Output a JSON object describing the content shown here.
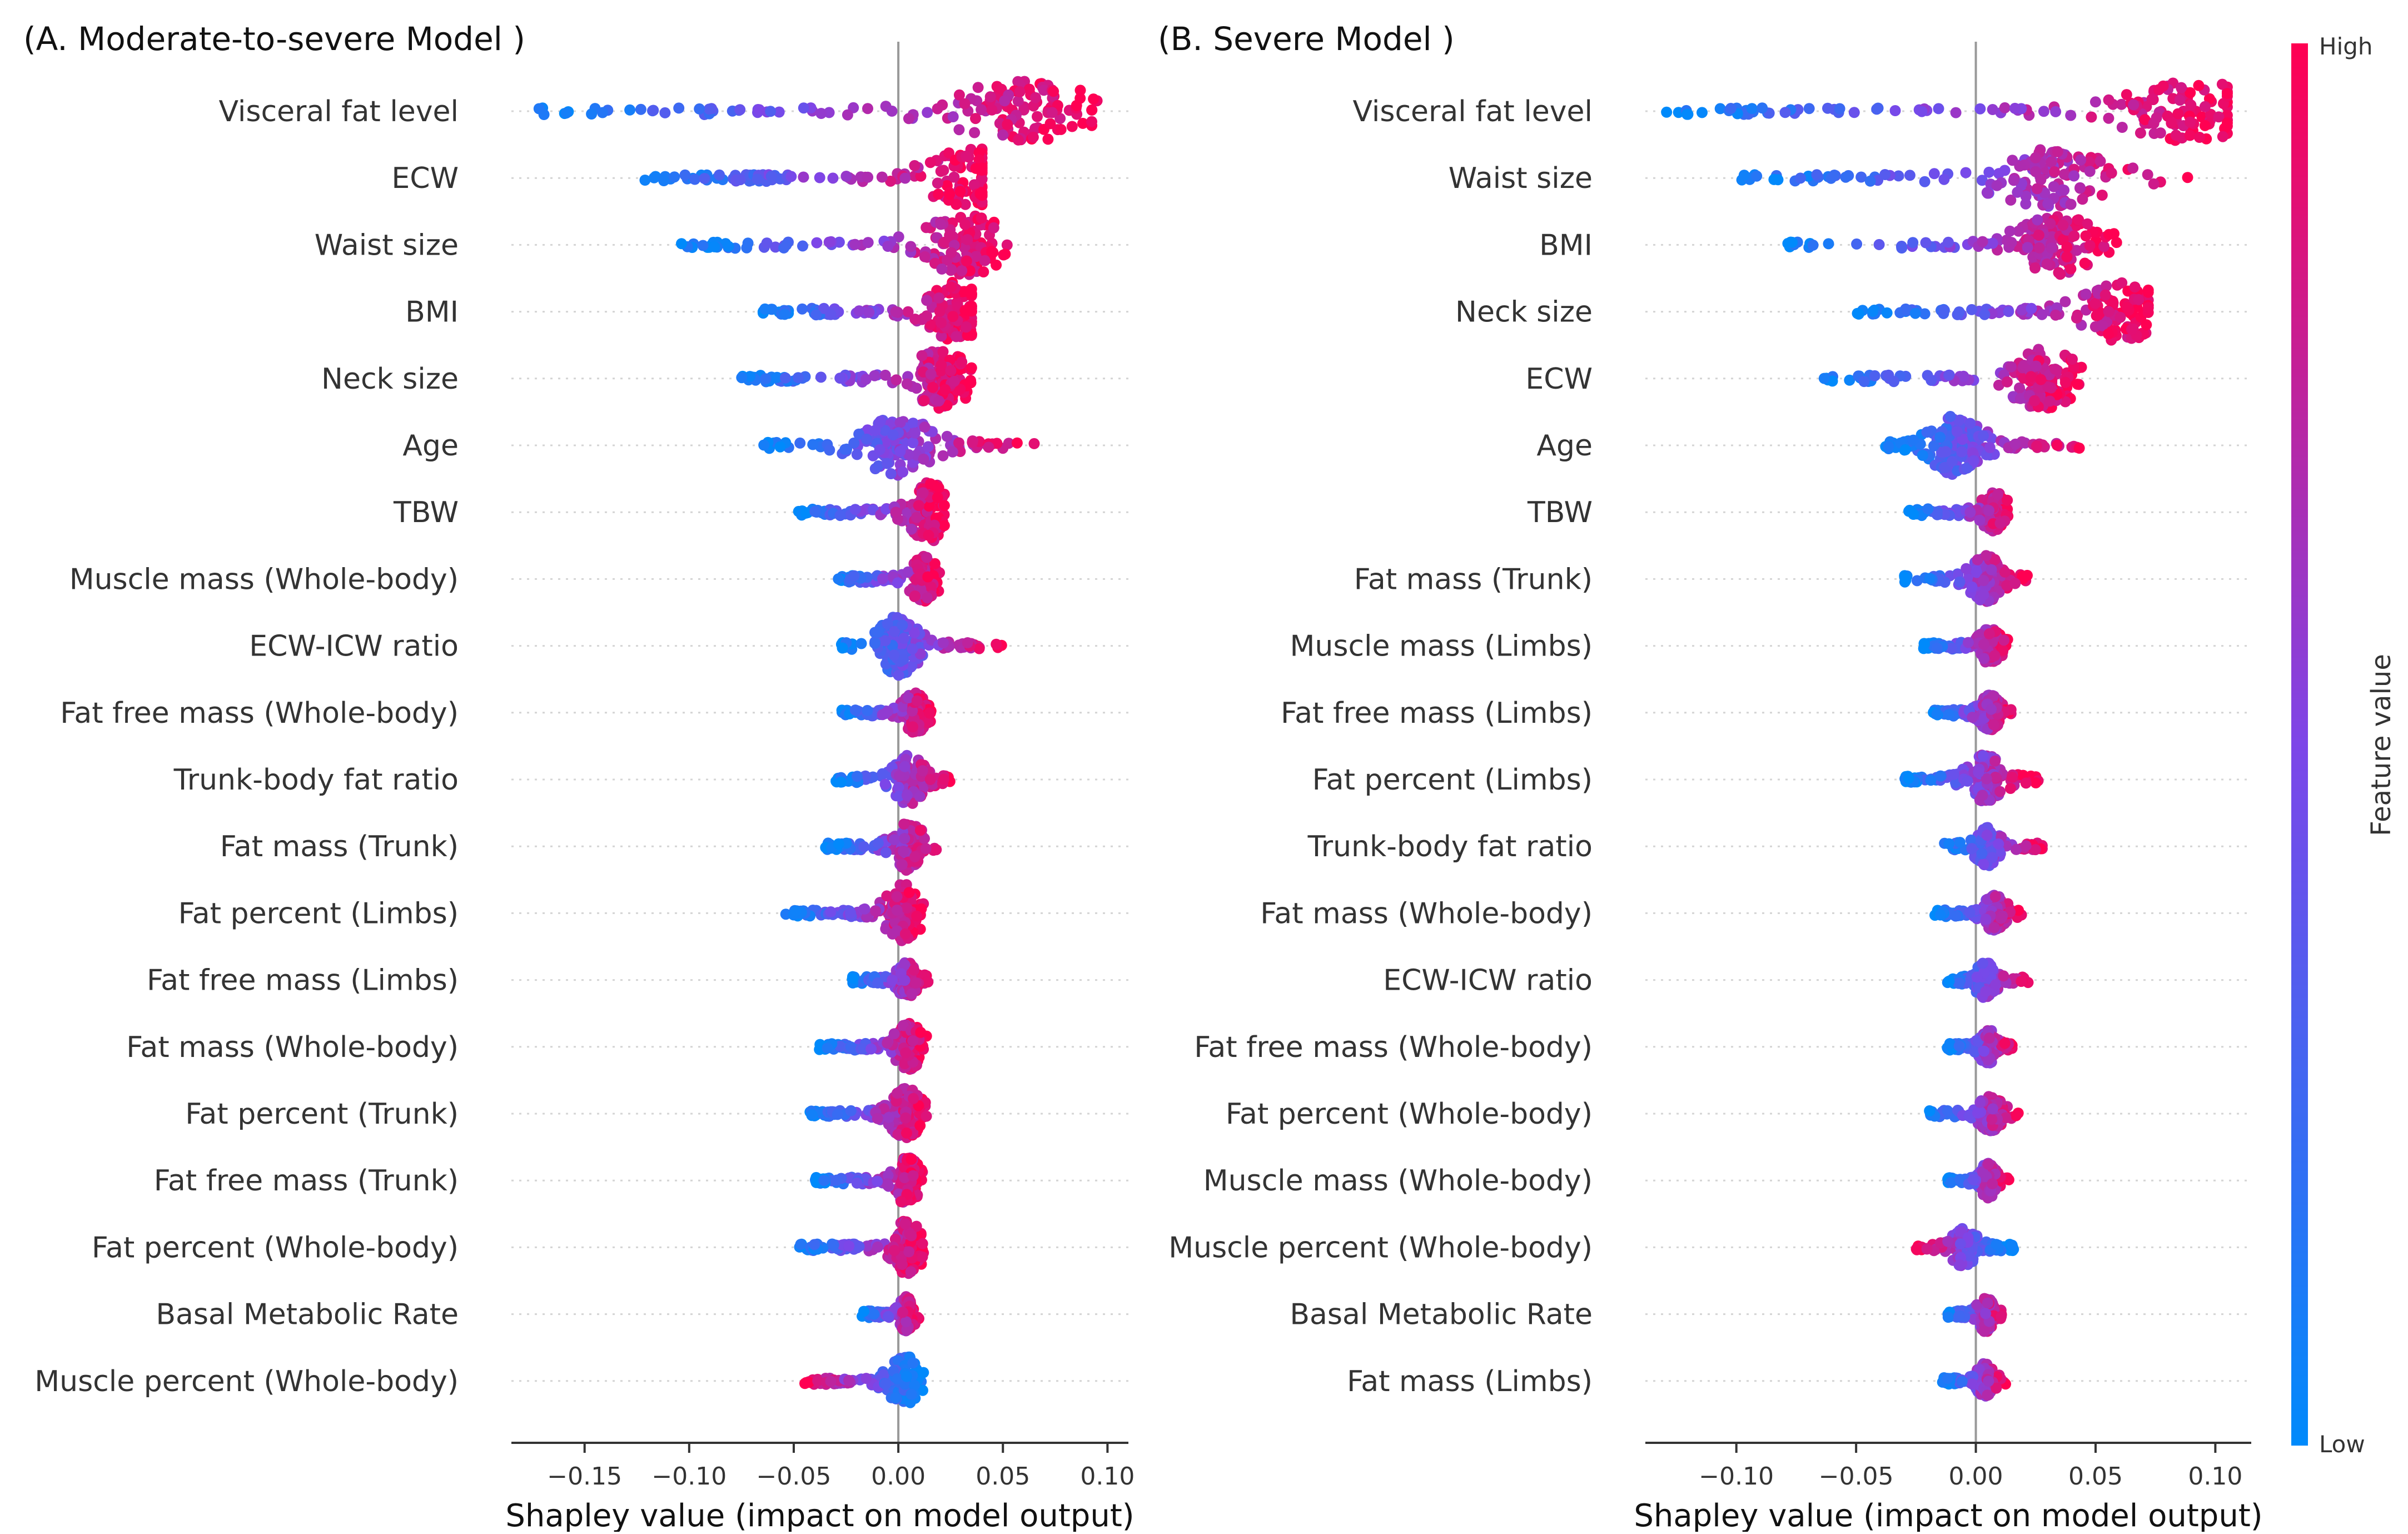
{
  "colorbar": {
    "label": "Feature value",
    "high_label": "High",
    "low_label": "Low",
    "low_color": "#008afb",
    "high_color": "#ff0052"
  },
  "chart_data": [
    {
      "type": "scatter",
      "subtype": "shap-beeswarm",
      "title": "(A. Moderate-to-severe Model )",
      "xlabel": "Shapley value (impact on model output)",
      "xlim": [
        -0.185,
        0.11
      ],
      "xticks": [
        -0.15,
        -0.1,
        -0.05,
        0.0,
        0.05,
        0.1
      ],
      "xtick_labels": [
        "−0.15",
        "−0.10",
        "−0.05",
        "0.00",
        "0.05",
        "0.10"
      ],
      "features": [
        {
          "name": "Visceral fat level",
          "min": -0.175,
          "max": 0.095,
          "peak": 0.06,
          "sep": "low-left"
        },
        {
          "name": "ECW",
          "min": -0.125,
          "max": 0.04,
          "peak": 0.035,
          "sep": "low-left"
        },
        {
          "name": "Waist size",
          "min": -0.105,
          "max": 0.052,
          "peak": 0.032,
          "sep": "low-left"
        },
        {
          "name": "BMI",
          "min": -0.065,
          "max": 0.035,
          "peak": 0.028,
          "sep": "low-left"
        },
        {
          "name": "Neck size",
          "min": -0.075,
          "max": 0.035,
          "peak": 0.02,
          "sep": "low-left"
        },
        {
          "name": "Age",
          "min": -0.065,
          "max": 0.065,
          "peak": 0.0,
          "sep": "low-left"
        },
        {
          "name": "TBW",
          "min": -0.048,
          "max": 0.022,
          "peak": 0.015,
          "sep": "low-left"
        },
        {
          "name": "Muscle mass (Whole-body)",
          "min": -0.03,
          "max": 0.02,
          "peak": 0.012,
          "sep": "low-left"
        },
        {
          "name": "ECW-ICW ratio",
          "min": -0.028,
          "max": 0.05,
          "peak": 0.0,
          "sep": "low-left"
        },
        {
          "name": "Fat free mass (Whole-body)",
          "min": -0.028,
          "max": 0.016,
          "peak": 0.008,
          "sep": "low-left"
        },
        {
          "name": "Trunk-body fat ratio",
          "min": -0.03,
          "max": 0.025,
          "peak": 0.005,
          "sep": "low-left"
        },
        {
          "name": "Fat mass (Trunk)",
          "min": -0.035,
          "max": 0.02,
          "peak": 0.005,
          "sep": "low-left"
        },
        {
          "name": "Fat percent (Limbs)",
          "min": -0.055,
          "max": 0.012,
          "peak": 0.003,
          "sep": "low-left"
        },
        {
          "name": "Fat free mass (Limbs)",
          "min": -0.022,
          "max": 0.015,
          "peak": 0.004,
          "sep": "low-left"
        },
        {
          "name": "Fat mass (Whole-body)",
          "min": -0.038,
          "max": 0.014,
          "peak": 0.005,
          "sep": "low-left"
        },
        {
          "name": "Fat percent (Trunk)",
          "min": -0.043,
          "max": 0.014,
          "peak": 0.004,
          "sep": "low-left"
        },
        {
          "name": "Fat free mass (Trunk)",
          "min": -0.04,
          "max": 0.012,
          "peak": 0.004,
          "sep": "low-left"
        },
        {
          "name": "Fat percent (Whole-body)",
          "min": -0.048,
          "max": 0.012,
          "peak": 0.004,
          "sep": "low-left"
        },
        {
          "name": "Basal Metabolic Rate",
          "min": -0.018,
          "max": 0.01,
          "peak": 0.004,
          "sep": "low-left"
        },
        {
          "name": "Muscle percent (Whole-body)",
          "min": -0.045,
          "max": 0.012,
          "peak": 0.003,
          "sep": "high-left"
        }
      ]
    },
    {
      "type": "scatter",
      "subtype": "shap-beeswarm",
      "title": "(B. Severe Model )",
      "xlabel": "Shapley value (impact on model output)",
      "xlim": [
        -0.138,
        0.115
      ],
      "xticks": [
        -0.1,
        -0.05,
        0.0,
        0.05,
        0.1
      ],
      "xtick_labels": [
        "−0.10",
        "−0.05",
        "0.00",
        "0.05",
        "0.10"
      ],
      "features": [
        {
          "name": "Visceral fat level",
          "min": -0.13,
          "max": 0.105,
          "peak": 0.09,
          "sep": "low-left"
        },
        {
          "name": "Waist size",
          "min": -0.1,
          "max": 0.09,
          "peak": 0.03,
          "sep": "low-left"
        },
        {
          "name": "BMI",
          "min": -0.08,
          "max": 0.06,
          "peak": 0.035,
          "sep": "low-left"
        },
        {
          "name": "Neck size",
          "min": -0.05,
          "max": 0.072,
          "peak": 0.06,
          "sep": "low-left"
        },
        {
          "name": "ECW",
          "min": -0.065,
          "max": 0.045,
          "peak": 0.028,
          "sep": "low-left"
        },
        {
          "name": "Age",
          "min": -0.038,
          "max": 0.045,
          "peak": -0.008,
          "sep": "low-left"
        },
        {
          "name": "TBW",
          "min": -0.028,
          "max": 0.015,
          "peak": 0.008,
          "sep": "low-left"
        },
        {
          "name": "Fat mass (Trunk)",
          "min": -0.03,
          "max": 0.022,
          "peak": 0.004,
          "sep": "low-left"
        },
        {
          "name": "Muscle mass (Limbs)",
          "min": -0.022,
          "max": 0.015,
          "peak": 0.006,
          "sep": "low-left"
        },
        {
          "name": "Fat free mass (Limbs)",
          "min": -0.018,
          "max": 0.015,
          "peak": 0.006,
          "sep": "low-left"
        },
        {
          "name": "Fat percent (Limbs)",
          "min": -0.03,
          "max": 0.026,
          "peak": 0.004,
          "sep": "low-left"
        },
        {
          "name": "Trunk-body fat ratio",
          "min": -0.014,
          "max": 0.028,
          "peak": 0.005,
          "sep": "low-left"
        },
        {
          "name": "Fat mass (Whole-body)",
          "min": -0.018,
          "max": 0.02,
          "peak": 0.008,
          "sep": "low-left"
        },
        {
          "name": "ECW-ICW ratio",
          "min": -0.012,
          "max": 0.022,
          "peak": 0.004,
          "sep": "low-left"
        },
        {
          "name": "Fat free mass (Whole-body)",
          "min": -0.012,
          "max": 0.016,
          "peak": 0.005,
          "sep": "low-left"
        },
        {
          "name": "Fat percent (Whole-body)",
          "min": -0.02,
          "max": 0.018,
          "peak": 0.006,
          "sep": "low-left"
        },
        {
          "name": "Muscle mass (Whole-body)",
          "min": -0.012,
          "max": 0.014,
          "peak": 0.005,
          "sep": "low-left"
        },
        {
          "name": "Muscle percent (Whole-body)",
          "min": -0.025,
          "max": 0.016,
          "peak": -0.005,
          "sep": "high-left"
        },
        {
          "name": "Basal Metabolic Rate",
          "min": -0.012,
          "max": 0.012,
          "peak": 0.004,
          "sep": "low-left"
        },
        {
          "name": "Fat mass (Limbs)",
          "min": -0.014,
          "max": 0.013,
          "peak": 0.004,
          "sep": "low-left"
        }
      ]
    }
  ]
}
